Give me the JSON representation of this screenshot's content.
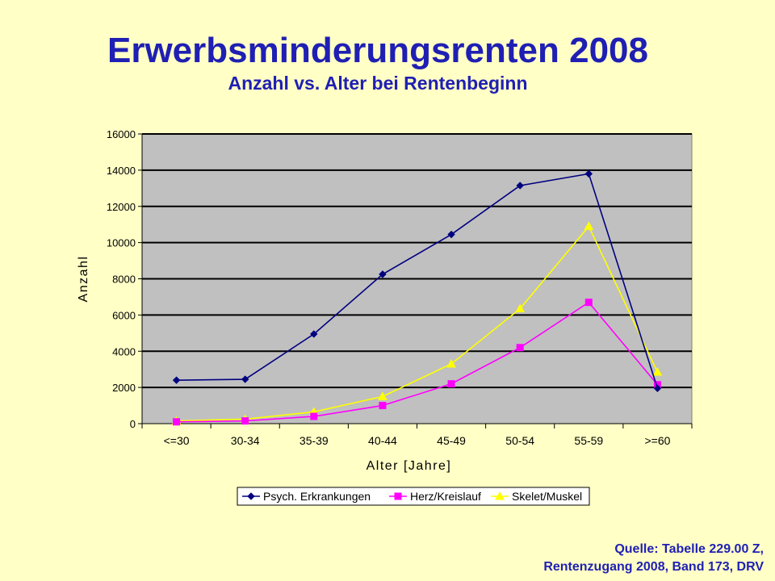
{
  "header": {
    "title": "Erwerbsminderungsrenten 2008",
    "subtitle": "Anzahl vs. Alter bei Rentenbeginn"
  },
  "footer": {
    "source_line1": "Quelle: Tabelle 229.00 Z,",
    "source_line2": "Rentenzugang 2008, Band 173, DRV"
  },
  "colors": {
    "background": "#ffffc6",
    "plot_area": "#c0c0c0",
    "title": "#1f1fb4"
  },
  "chart_data": {
    "type": "line",
    "title": "",
    "xlabel": "Alter [Jahre]",
    "ylabel": "Anzahl",
    "ylim": [
      0,
      16000
    ],
    "yticks": [
      0,
      2000,
      4000,
      6000,
      8000,
      10000,
      12000,
      14000,
      16000
    ],
    "grid": true,
    "legend_position": "bottom",
    "categories": [
      "<=30",
      "30-34",
      "35-39",
      "40-44",
      "45-49",
      "50-54",
      "55-59",
      ">=60"
    ],
    "series": [
      {
        "name": "Psych. Erkrankungen",
        "color": "#000080",
        "marker": "diamond",
        "values": [
          2400,
          2450,
          4950,
          8250,
          10450,
          13150,
          13800,
          1950
        ]
      },
      {
        "name": "Herz/Kreislauf",
        "color": "#ff00ff",
        "marker": "square",
        "values": [
          100,
          150,
          400,
          1000,
          2200,
          4200,
          6700,
          2150
        ]
      },
      {
        "name": "Skelet/Muskel",
        "color": "#ffff00",
        "marker": "triangle",
        "values": [
          150,
          250,
          650,
          1500,
          3300,
          6350,
          10900,
          2850
        ]
      }
    ]
  }
}
